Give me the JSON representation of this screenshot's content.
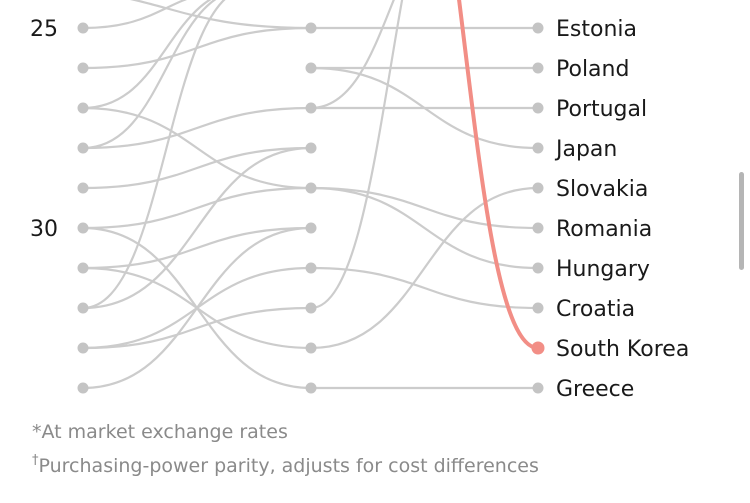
{
  "chart_data": {
    "type": "line",
    "subtype": "bump",
    "ranks_shown": [
      25,
      26,
      27,
      28,
      29,
      30,
      31,
      32,
      33,
      34
    ],
    "rank_ticks": [
      "25",
      "30"
    ],
    "series": [
      {
        "name": "Estonia",
        "ranks": [
          null,
          25,
          25
        ]
      },
      {
        "name": "Poland",
        "ranks": [
          null,
          26,
          26
        ]
      },
      {
        "name": "Portugal",
        "ranks": [
          28,
          27,
          27
        ]
      },
      {
        "name": "Japan",
        "ranks": [
          null,
          26,
          28
        ]
      },
      {
        "name": "Slovakia",
        "ranks": [
          31,
          33,
          29
        ]
      },
      {
        "name": "Romania",
        "ranks": [
          27,
          29,
          30
        ]
      },
      {
        "name": "Hungary",
        "ranks": [
          30,
          29,
          31
        ]
      },
      {
        "name": "Croatia",
        "ranks": [
          33,
          31,
          32
        ]
      },
      {
        "name": "South Korea",
        "ranks": [
          null,
          null,
          33
        ],
        "highlight": true
      },
      {
        "name": "Greece",
        "ranks": [
          null,
          34,
          34
        ]
      }
    ],
    "extra_connections": [
      {
        "ranks": [
          25,
          24
        ]
      },
      {
        "ranks": [
          26,
          25
        ]
      },
      {
        "ranks": [
          29,
          28
        ]
      },
      {
        "ranks": [
          32,
          28
        ]
      },
      {
        "ranks": [
          34,
          30
        ]
      },
      {
        "ranks": [
          24,
          25
        ]
      },
      {
        "ranks": [
          30,
          34
        ]
      },
      {
        "ranks": [
          31,
          30
        ]
      },
      {
        "ranks": [
          33,
          32
        ]
      },
      {
        "ranks": [
          27,
          24
        ]
      },
      {
        "ranks": [
          28,
          24
        ]
      },
      {
        "ranks": [
          32,
          24
        ]
      }
    ],
    "colors": {
      "line": "#cccccc",
      "dot": "#c4c4c4",
      "highlight": "#f28e86"
    }
  },
  "footnotes": {
    "market": "*At market exchange rates",
    "ppp_mark": "†",
    "ppp_text": "Purchasing-power parity, adjusts for cost differences"
  }
}
